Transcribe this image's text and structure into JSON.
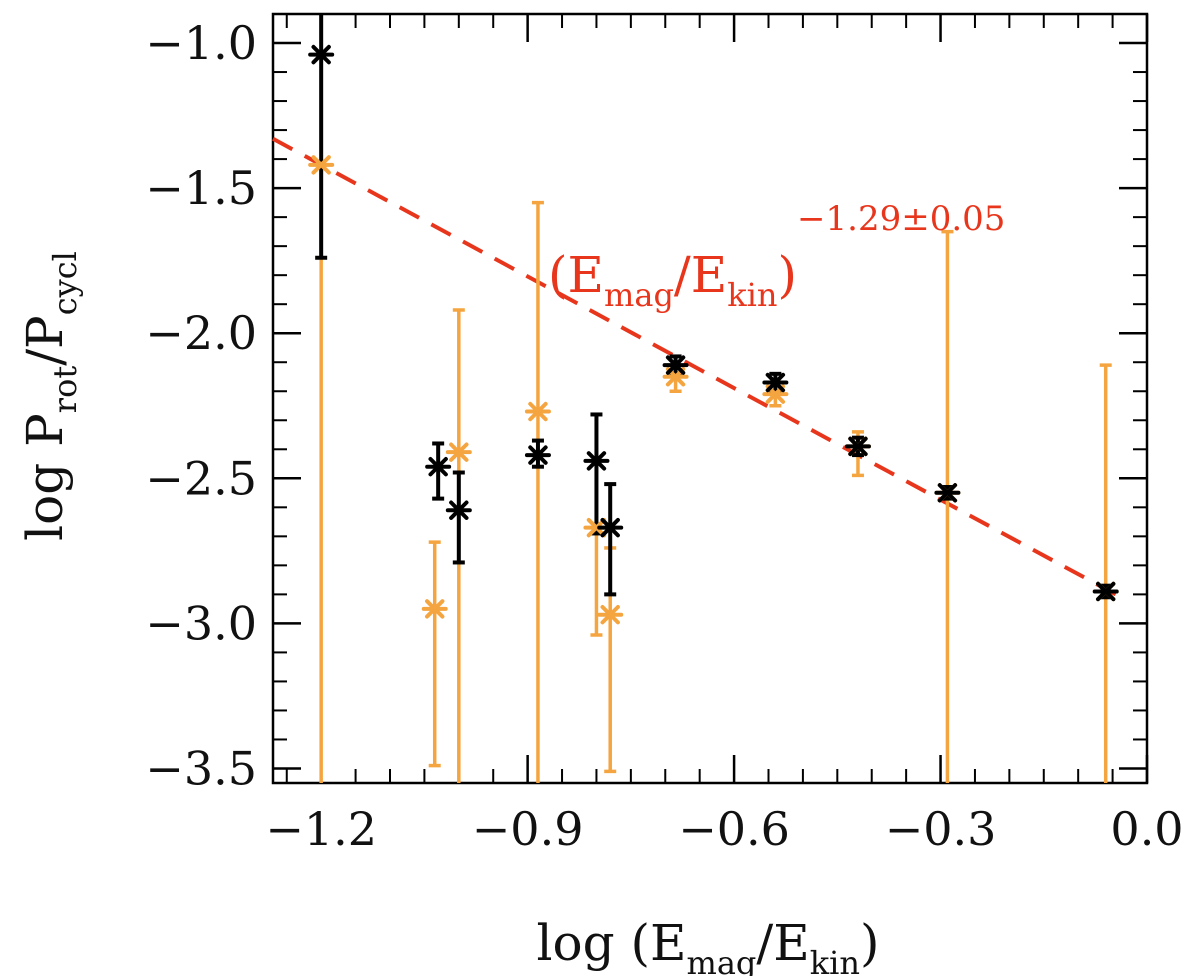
{
  "chart_data": {
    "type": "scatter",
    "title": "",
    "xlabel": "log (E_mag/E_kin)",
    "xlabel_parts": {
      "prefix": "log (E",
      "sub1": "mag",
      "mid": "/E",
      "sub2": "kin",
      "suffix": ")"
    },
    "ylabel": "log P_rot/P_cycl",
    "ylabel_parts": {
      "prefix": "log P",
      "sub1": "rot",
      "mid": "/P",
      "sub2": "cycl"
    },
    "xlim": [
      -1.27,
      0.0
    ],
    "ylim": [
      -3.55,
      -0.9
    ],
    "xticks": [
      -1.2,
      -0.9,
      -0.6,
      -0.3,
      0.0
    ],
    "xtick_labels": [
      "−1.2",
      "−0.9",
      "−0.6",
      "−0.3",
      "0.0"
    ],
    "yticks": [
      -1.0,
      -1.5,
      -2.0,
      -2.5,
      -3.0,
      -3.5
    ],
    "ytick_labels": [
      "−1.0",
      "−1.5",
      "−2.0",
      "−2.5",
      "−3.0",
      "−3.5"
    ],
    "colors": {
      "black": "#000000",
      "orange": "#f5a540",
      "fit": "#e8361c"
    },
    "series": [
      {
        "name": "black",
        "color": "#000000",
        "points": [
          {
            "x": -1.2,
            "y": -1.04,
            "lo": -1.74,
            "hi": -0.9
          },
          {
            "x": -1.03,
            "y": -2.46,
            "lo": -2.57,
            "hi": -2.38
          },
          {
            "x": -1.0,
            "y": -2.61,
            "lo": -2.79,
            "hi": -2.48
          },
          {
            "x": -0.885,
            "y": -2.42,
            "lo": -2.46,
            "hi": -2.37
          },
          {
            "x": -0.8,
            "y": -2.44,
            "lo": -2.69,
            "hi": -2.28
          },
          {
            "x": -0.78,
            "y": -2.67,
            "lo": -2.9,
            "hi": -2.52
          },
          {
            "x": -0.685,
            "y": -2.11,
            "lo": -2.14,
            "hi": -2.08
          },
          {
            "x": -0.54,
            "y": -2.17,
            "lo": -2.2,
            "hi": -2.14
          },
          {
            "x": -0.42,
            "y": -2.39,
            "lo": -2.42,
            "hi": -2.36
          },
          {
            "x": -0.29,
            "y": -2.55,
            "lo": -2.57,
            "hi": -2.53
          },
          {
            "x": -0.06,
            "y": -2.89,
            "lo": -2.91,
            "hi": -2.87
          }
        ]
      },
      {
        "name": "orange",
        "color": "#f5a540",
        "points": [
          {
            "x": -1.2,
            "y": -1.42,
            "lo": -3.55,
            "hi": -1.42
          },
          {
            "x": -1.035,
            "y": -2.95,
            "lo": -3.49,
            "hi": -2.72
          },
          {
            "x": -1.0,
            "y": -2.41,
            "lo": -3.55,
            "hi": -1.92
          },
          {
            "x": -0.885,
            "y": -2.27,
            "lo": -3.55,
            "hi": -1.55
          },
          {
            "x": -0.8,
            "y": -2.67,
            "lo": -3.04,
            "hi": -2.67
          },
          {
            "x": -0.78,
            "y": -2.97,
            "lo": -3.51,
            "hi": -2.74
          },
          {
            "x": -0.685,
            "y": -2.15,
            "lo": -2.2,
            "hi": -2.11
          },
          {
            "x": -0.54,
            "y": -2.21,
            "lo": -2.25,
            "hi": -2.17
          },
          {
            "x": -0.42,
            "y": -2.39,
            "lo": -2.49,
            "hi": -2.34
          },
          {
            "x": -0.29,
            "y": -2.55,
            "lo": -3.55,
            "hi": -1.65
          },
          {
            "x": -0.06,
            "y": -2.89,
            "lo": -3.55,
            "hi": -2.11
          }
        ]
      }
    ],
    "fit": {
      "color": "#e8361c",
      "style": "dashed",
      "x": [
        -1.27,
        -0.03
      ],
      "y": [
        -1.33,
        -2.92
      ],
      "label_parts": {
        "open": "(E",
        "sub1": "mag",
        "mid": "/E",
        "sub2": "kin",
        "close": ")",
        "exponent": "−1.29±0.05"
      },
      "label_anchor": {
        "x": -0.99,
        "y": -1.79
      }
    }
  }
}
